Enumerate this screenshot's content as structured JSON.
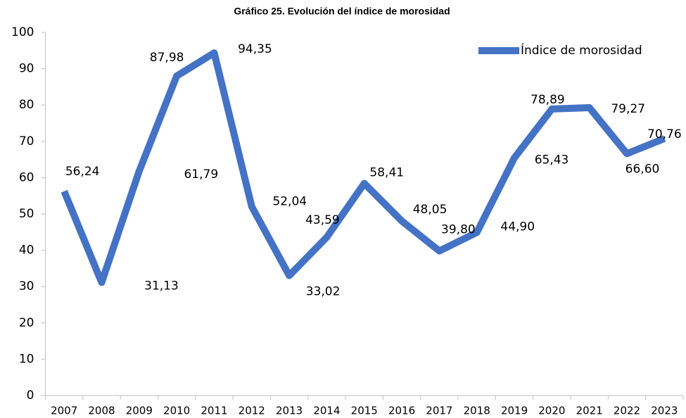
{
  "chart_data": {
    "type": "line",
    "title": "Gráfico 25. Evolución del índice de morosidad",
    "categories": [
      "2007",
      "2008",
      "2009",
      "2010",
      "2011",
      "2012",
      "2013",
      "2014",
      "2015",
      "2016",
      "2017",
      "2018",
      "2019",
      "2020",
      "2021",
      "2022",
      "2023"
    ],
    "series": [
      {
        "name": "Índice de morosidad",
        "color": "#4472c4",
        "values": [
          56.24,
          31.13,
          61.79,
          87.98,
          94.35,
          52.04,
          33.02,
          43.59,
          58.41,
          48.05,
          39.8,
          44.9,
          65.43,
          78.89,
          79.27,
          66.6,
          70.76
        ],
        "value_labels": [
          "56,24",
          "31,13",
          "61,79",
          "87,98",
          "94,35",
          "52,04",
          "33,02",
          "43,59",
          "58,41",
          "48,05",
          "39,80",
          "44,90",
          "65,43",
          "78,89",
          "79,27",
          "66,60",
          "70,76"
        ]
      }
    ],
    "ylim": [
      0,
      100
    ],
    "yticks": [
      0,
      10,
      20,
      30,
      40,
      50,
      60,
      70,
      80,
      90,
      100
    ],
    "grid": false,
    "legend": "top-right"
  }
}
